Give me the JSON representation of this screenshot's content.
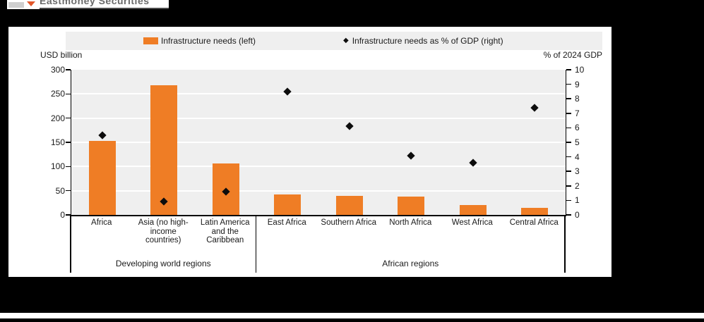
{
  "brand": {
    "name": "Eastmoney Securities",
    "arrow_color": "#e2572a",
    "text_color": "#6a6a6a"
  },
  "legend": {
    "bars_label": "Infrastructure needs (left)",
    "diamonds_label": "Infrastructure needs as % of GDP (right)",
    "diamond_glyph": "◆"
  },
  "axes": {
    "left_title": "USD billion",
    "right_title": "% of 2024 GDP",
    "left_ticks": [
      0,
      50,
      100,
      150,
      200,
      250,
      300
    ],
    "right_ticks": [
      0,
      1,
      2,
      3,
      4,
      5,
      6,
      7,
      8,
      9,
      10
    ],
    "left_max": 300,
    "right_max": 10
  },
  "colors": {
    "bar_orange": "#ef7d25",
    "diamond_black": "#0d0d0d",
    "plot_background": "#efefef",
    "gridline": "#ffffff"
  },
  "chart_data": {
    "type": "bar",
    "title": "",
    "categories": [
      "Africa",
      "Asia (no high-income countries)",
      "Latin America and the Caribbean",
      "East Africa",
      "Southern Africa",
      "North Africa",
      "West Africa",
      "Central Africa"
    ],
    "category_lines": [
      [
        "Africa"
      ],
      [
        "Asia (no high-",
        "income",
        "countries)"
      ],
      [
        "Latin America",
        "and the",
        "Caribbean"
      ],
      [
        "East Africa"
      ],
      [
        "Southern Africa"
      ],
      [
        "North Africa"
      ],
      [
        "West Africa"
      ],
      [
        "Central Africa"
      ]
    ],
    "series": [
      {
        "name": "Infrastructure needs (left)",
        "axis": "left",
        "unit": "USD billion",
        "values": [
          153,
          268,
          107,
          42,
          40,
          38,
          20,
          14
        ]
      },
      {
        "name": "Infrastructure needs as % of GDP (right)",
        "axis": "right",
        "unit": "% of 2024 GDP",
        "values": [
          5.5,
          0.9,
          1.6,
          8.5,
          6.1,
          4.1,
          3.6,
          7.4
        ]
      }
    ],
    "groups": [
      {
        "label": "Developing world regions",
        "start": 0,
        "end": 3
      },
      {
        "label": "African regions",
        "start": 3,
        "end": 8
      }
    ],
    "ylabel_left": "USD billion",
    "ylabel_right": "% of 2024 GDP",
    "ylim_left": [
      0,
      300
    ],
    "ylim_right": [
      0,
      10
    ],
    "grid": true,
    "legend_position": "top"
  }
}
